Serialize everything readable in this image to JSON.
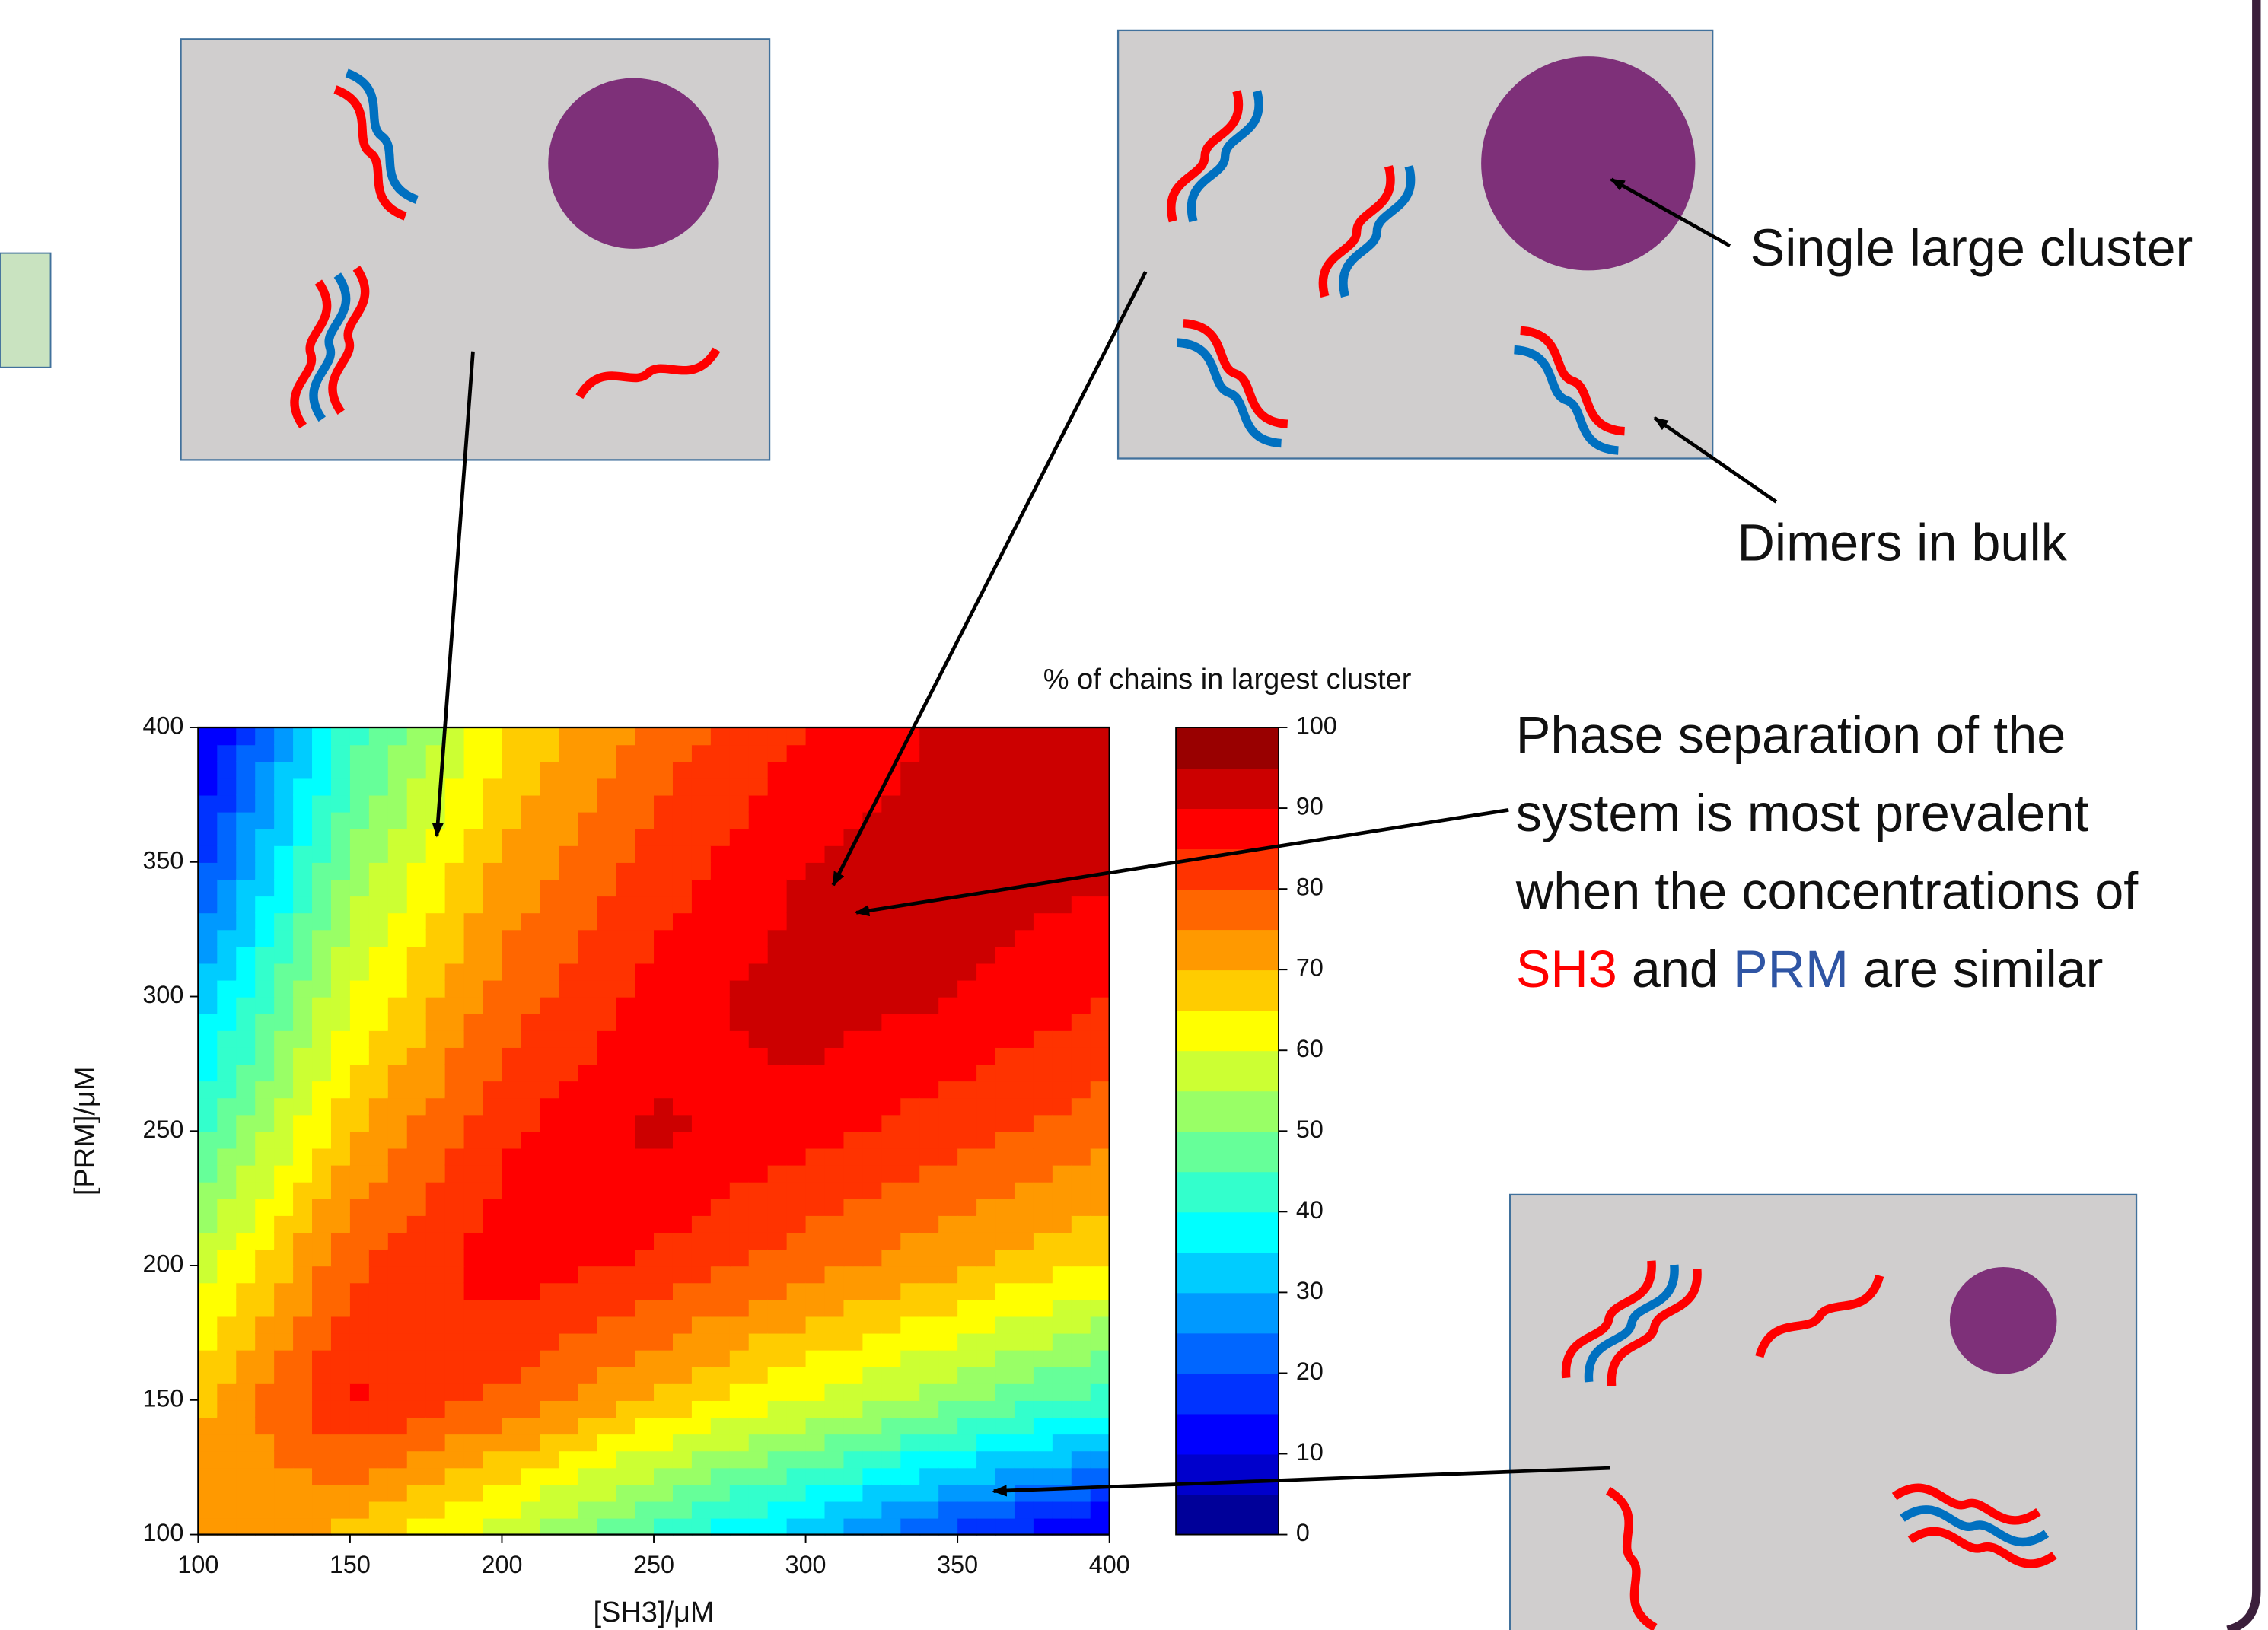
{
  "chart_data": {
    "type": "contour",
    "xlabel": "[SH3]/μM",
    "ylabel": "[PRM]/μM",
    "x": [
      100,
      150,
      200,
      250,
      300,
      350,
      400
    ],
    "y": [
      100,
      150,
      200,
      250,
      300,
      350,
      400
    ],
    "z": [
      [
        75,
        68,
        57,
        43,
        31,
        18,
        8
      ],
      [
        68,
        86,
        79,
        69,
        60,
        51,
        42
      ],
      [
        57,
        79,
        88,
        84,
        77,
        71,
        64
      ],
      [
        43,
        69,
        84,
        91,
        87,
        82,
        77
      ],
      [
        31,
        60,
        77,
        87,
        93,
        90,
        85
      ],
      [
        18,
        51,
        71,
        82,
        90,
        93,
        91
      ],
      [
        8,
        42,
        64,
        77,
        85,
        91,
        93
      ]
    ],
    "xlim": [
      100,
      400
    ],
    "ylim": [
      100,
      400
    ],
    "xticks": [
      100,
      150,
      200,
      250,
      300,
      350,
      400
    ],
    "yticks": [
      100,
      150,
      200,
      250,
      300,
      350,
      400
    ],
    "colormap": "jet",
    "colorbar": {
      "label": "% of chains in largest cluster",
      "lim": [
        0,
        100
      ],
      "ticks": [
        0,
        10,
        20,
        30,
        40,
        50,
        60,
        70,
        80,
        90,
        100
      ]
    }
  },
  "annotations": {
    "single_cluster": "Single large cluster",
    "dimers": "Dimers in bulk",
    "phase": {
      "lines": [
        "Phase separation of the",
        "system is most prevalent",
        "when the concentrations of"
      ],
      "last_line": [
        {
          "text": "SH3",
          "color": "#ff0000"
        },
        {
          "text": "and"
        },
        {
          "text": "PRM",
          "color": "#2f55a4"
        },
        {
          "text": "are similar"
        }
      ]
    }
  }
}
